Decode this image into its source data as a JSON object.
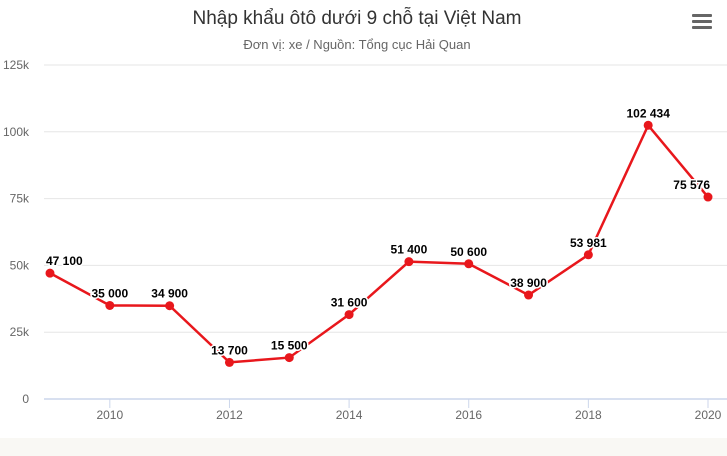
{
  "chart_data": {
    "type": "line",
    "title": "Nhập khẩu ôtô dưới 9 chỗ tại Việt Nam",
    "subtitle": "Đơn vị: xe / Nguồn: Tổng cục Hải Quan",
    "xlabel": "",
    "ylabel": "",
    "x": [
      2009,
      2010,
      2011,
      2012,
      2013,
      2014,
      2015,
      2016,
      2017,
      2018,
      2019,
      2020
    ],
    "series": [
      {
        "name": "Nhập khẩu",
        "color": "#e8171c",
        "values": [
          47100,
          35000,
          34900,
          13700,
          15500,
          31600,
          51400,
          50600,
          38900,
          53981,
          102434,
          75576
        ],
        "labels": [
          "47 100",
          "35 000",
          "34 900",
          "13 700",
          "15 500",
          "31 600",
          "51 400",
          "50 600",
          "38 900",
          "53 981",
          "102 434",
          "75 576"
        ]
      }
    ],
    "xticks": [
      "2010",
      "2012",
      "2014",
      "2016",
      "2018",
      "2020"
    ],
    "yticks": [
      "0",
      "25k",
      "50k",
      "75k",
      "100k",
      "125k"
    ],
    "ylim": [
      0,
      125000
    ],
    "xlim": [
      2009,
      2020
    ],
    "grid": true,
    "legend": "none"
  },
  "menu_icon": "hamburger-menu-icon"
}
